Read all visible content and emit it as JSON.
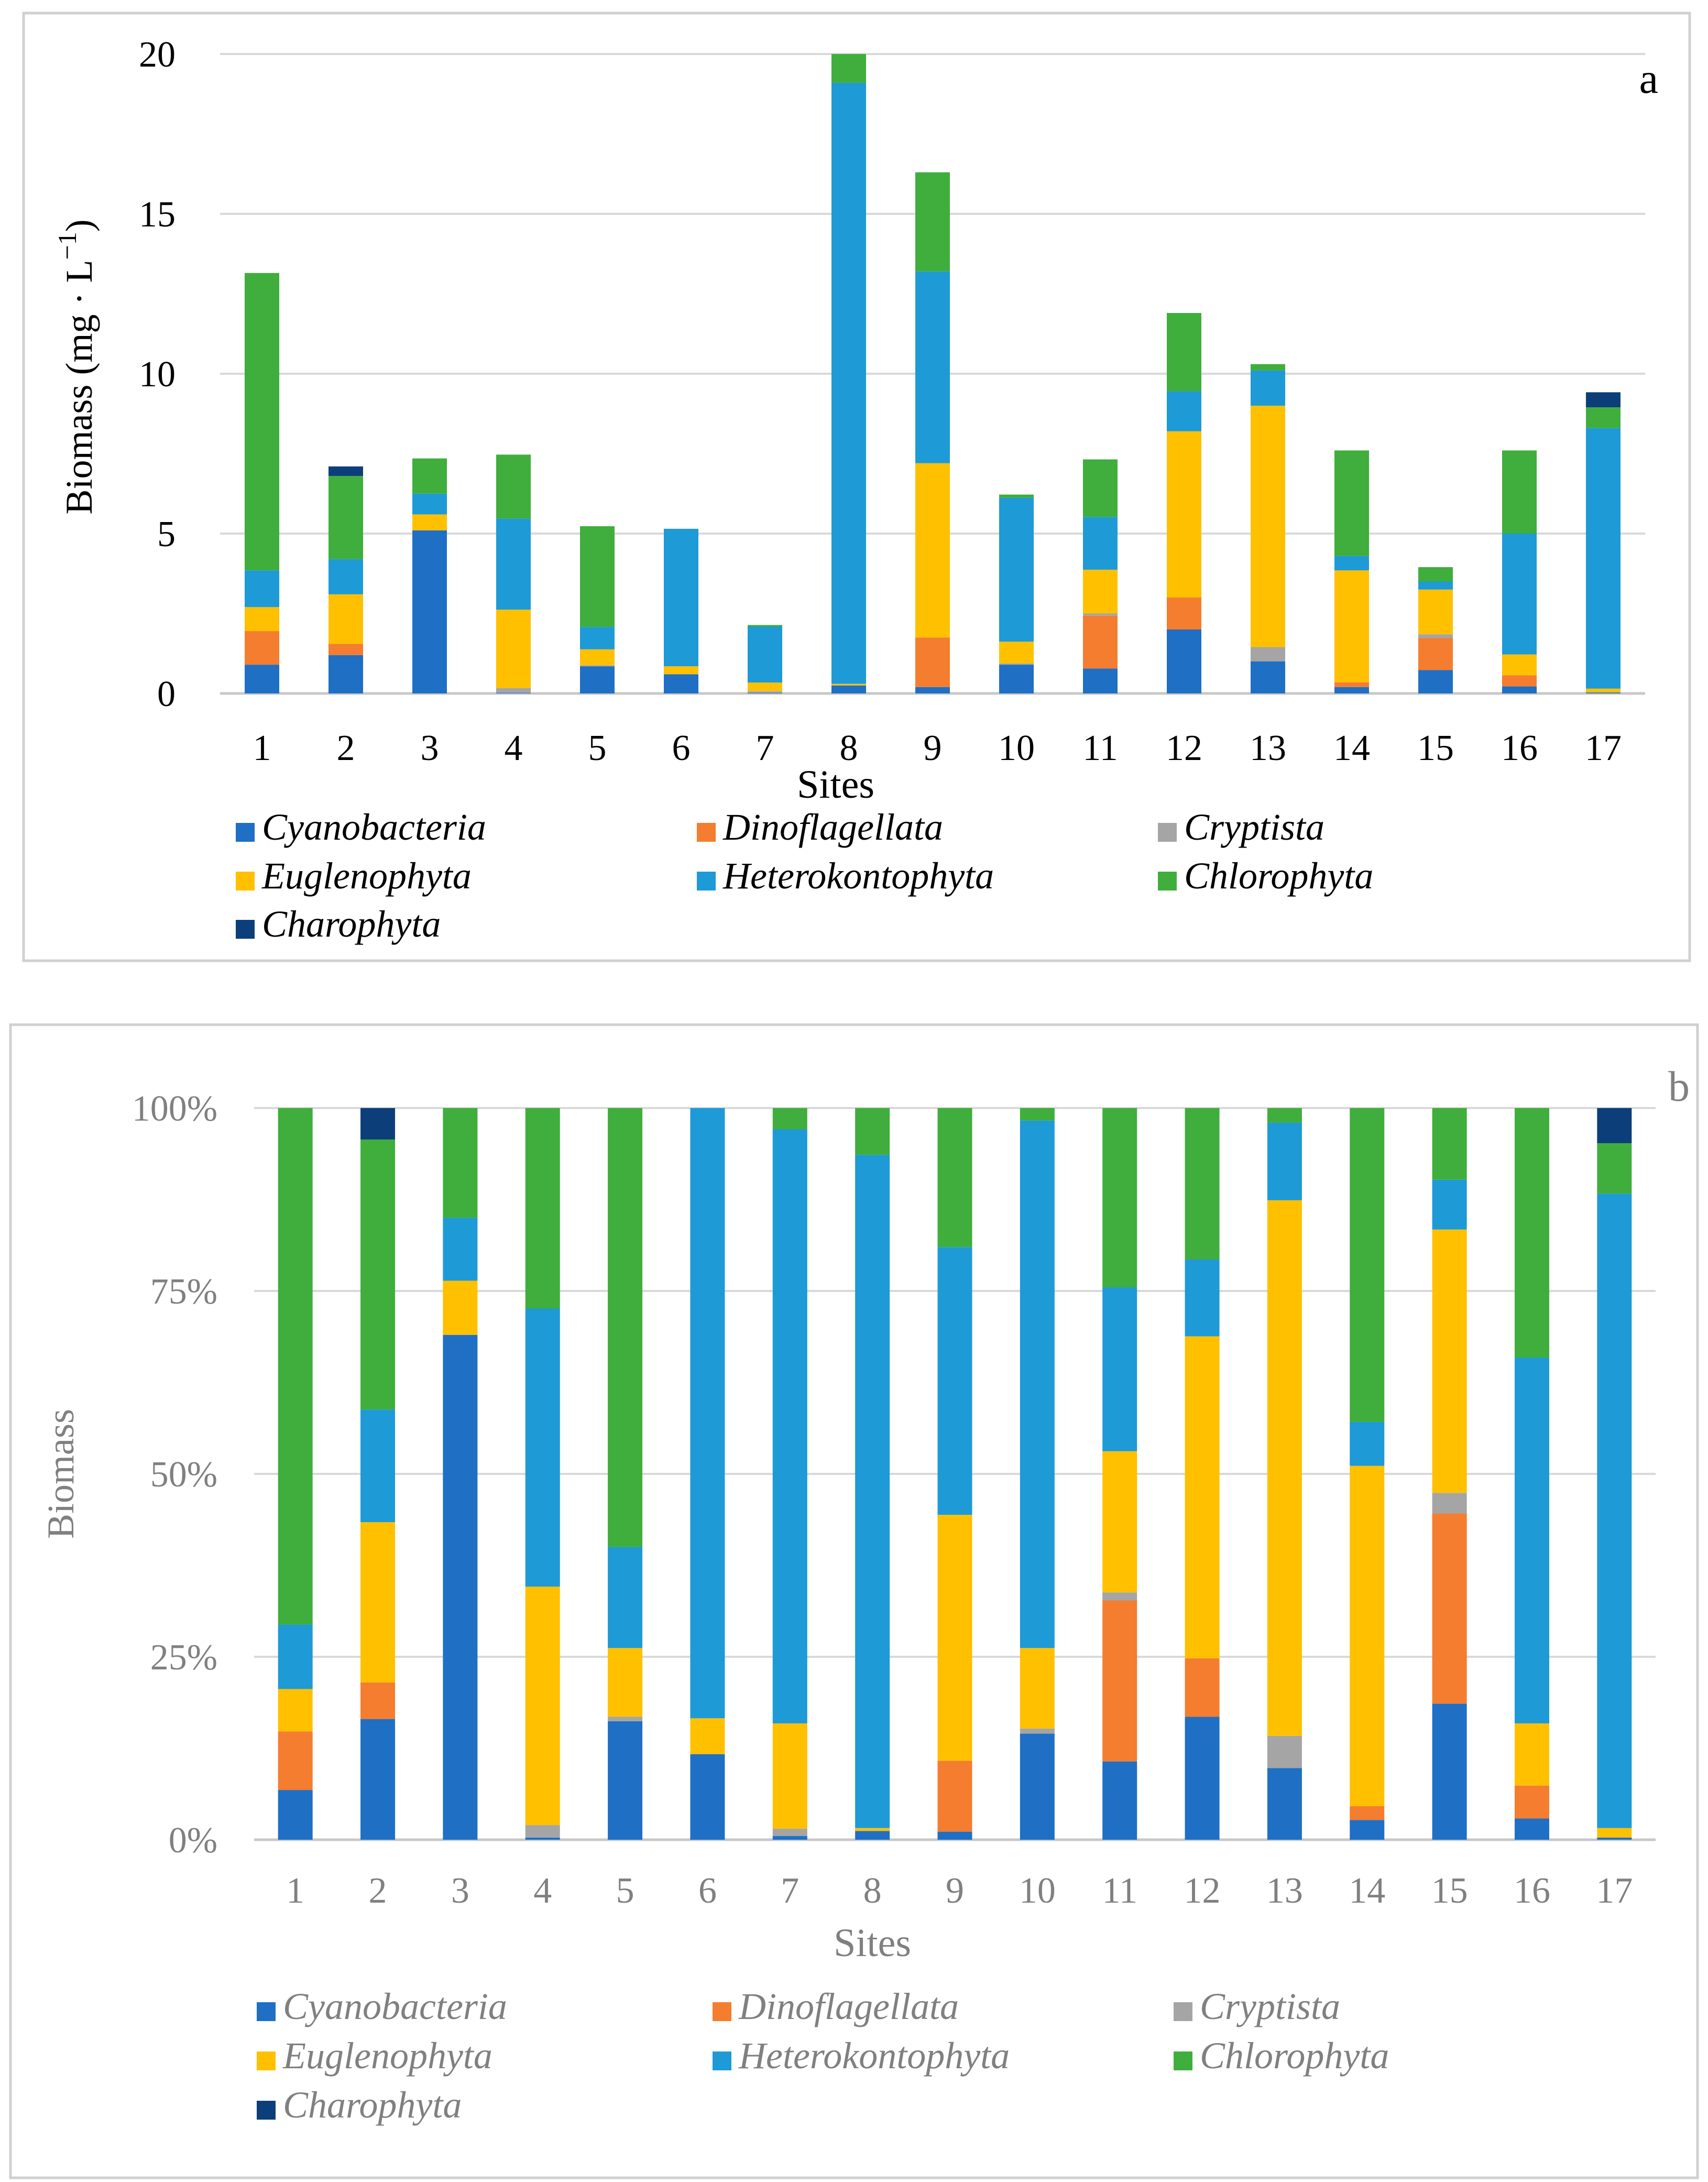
{
  "chart_data": [
    {
      "panel": "a",
      "type": "bar",
      "stacked": true,
      "xlabel": "Sites",
      "ylabel_main": "Biomass (mg · L",
      "ylabel_sup": "−1",
      "ylabel_tail": ")",
      "ylim": [
        0,
        20
      ],
      "yticks": [
        0,
        5,
        10,
        15,
        20
      ],
      "ytick_labels": [
        "0",
        "5",
        "10",
        "15",
        "20"
      ],
      "grid": true,
      "categories": [
        "1",
        "2",
        "3",
        "4",
        "5",
        "6",
        "7",
        "8",
        "9",
        "10",
        "11",
        "12",
        "13",
        "14",
        "15",
        "16",
        "17"
      ],
      "series": [
        {
          "name": "Cyanobacteria",
          "color": "#1f6fc5",
          "values": [
            0.9,
            1.2,
            5.1,
            0.02,
            0.85,
            0.6,
            0.02,
            0.25,
            0.2,
            0.9,
            0.78,
            2.0,
            1.0,
            0.2,
            0.73,
            0.22,
            0.03
          ]
        },
        {
          "name": "Dinoflagellata",
          "color": "#f47d2f",
          "values": [
            1.05,
            0.35,
            0,
            0,
            0,
            0,
            0,
            0,
            1.55,
            0,
            1.65,
            1.0,
            0,
            0.15,
            1.0,
            0.35,
            0
          ]
        },
        {
          "name": "Cryptista",
          "color": "#a5a5a5",
          "values": [
            0,
            0,
            0,
            0.15,
            0.03,
            0,
            0.05,
            0,
            0,
            0.04,
            0.07,
            0,
            0.45,
            0,
            0.12,
            0,
            0
          ]
        },
        {
          "name": "Euglenophyta",
          "color": "#ffc000",
          "values": [
            0.75,
            1.55,
            0.5,
            2.45,
            0.5,
            0.25,
            0.27,
            0.05,
            5.45,
            0.68,
            1.37,
            5.2,
            7.55,
            3.5,
            1.4,
            0.65,
            0.12
          ]
        },
        {
          "name": "Heterokontophyta",
          "color": "#1e9ad6",
          "values": [
            1.15,
            1.1,
            0.65,
            2.85,
            0.7,
            4.3,
            1.75,
            18.8,
            6.0,
            4.5,
            1.65,
            1.25,
            1.1,
            0.45,
            0.25,
            3.78,
            8.15
          ]
        },
        {
          "name": "Chlorophyta",
          "color": "#3fae3c",
          "values": [
            9.3,
            2.6,
            1.1,
            2.0,
            3.15,
            0,
            0.05,
            0.9,
            3.1,
            0.1,
            1.8,
            2.45,
            0.2,
            3.3,
            0.45,
            2.6,
            0.65
          ]
        },
        {
          "name": "Charophyta",
          "color": "#0c3f79",
          "values": [
            0,
            0.3,
            0,
            0,
            0,
            0,
            0,
            0,
            0,
            0,
            0,
            0,
            0,
            0,
            0,
            0,
            0.47
          ]
        }
      ],
      "panel_label": "a",
      "legend": [
        "Cyanobacteria",
        "Dinoflagellata",
        "Cryptista",
        "Euglenophyta",
        "Heterokontophyta",
        "Chlorophyta",
        "Charophyta"
      ]
    },
    {
      "panel": "b",
      "type": "bar",
      "stacked": true,
      "percent": true,
      "xlabel": "Sites",
      "ylabel": "Biomass",
      "ylim": [
        0,
        100
      ],
      "yticks": [
        0,
        25,
        50,
        75,
        100
      ],
      "ytick_labels": [
        "0%",
        "25%",
        "50%",
        "75%",
        "100%"
      ],
      "grid": true,
      "categories": [
        "1",
        "2",
        "3",
        "4",
        "5",
        "6",
        "7",
        "8",
        "9",
        "10",
        "11",
        "12",
        "13",
        "14",
        "15",
        "16",
        "17"
      ],
      "series": [
        {
          "name": "Cyanobacteria",
          "color": "#1f6fc5",
          "values": [
            6.8,
            16.5,
            69,
            0.3,
            16.2,
            11.7,
            0.5,
            1.2,
            1.1,
            14.5,
            10.7,
            16.8,
            9.8,
            2.7,
            18.6,
            2.9,
            0.3
          ]
        },
        {
          "name": "Dinoflagellata",
          "color": "#f47d2f",
          "values": [
            8,
            5,
            0,
            0,
            0,
            0,
            0,
            0,
            9.7,
            0,
            22,
            8,
            0,
            1.9,
            26,
            4.5,
            0
          ]
        },
        {
          "name": "Cryptista",
          "color": "#a5a5a5",
          "values": [
            0,
            0,
            0,
            1.7,
            0.6,
            0,
            1,
            0,
            0,
            0.7,
            1.1,
            0,
            4.4,
            0,
            2.8,
            0,
            0
          ]
        },
        {
          "name": "Euglenophyta",
          "color": "#ffc000",
          "values": [
            5.8,
            21.9,
            7.4,
            32.6,
            9.4,
            4.9,
            14.4,
            0.4,
            33.6,
            11,
            19.3,
            44,
            73.2,
            46.5,
            36,
            8.5,
            1.3
          ]
        },
        {
          "name": "Heterokontophyta",
          "color": "#1e9ad6",
          "values": [
            8.8,
            15.4,
            8.6,
            38,
            13.8,
            83.4,
            81.2,
            92,
            36.6,
            72.1,
            22.4,
            10.5,
            10.6,
            6,
            6.8,
            50,
            86.7
          ]
        },
        {
          "name": "Chlorophyta",
          "color": "#3fae3c",
          "values": [
            70.6,
            36.9,
            15,
            27.4,
            60,
            0,
            2.9,
            6.4,
            19,
            1.7,
            24.5,
            20.7,
            2,
            42.9,
            9.8,
            34.1,
            6.9
          ]
        },
        {
          "name": "Charophyta",
          "color": "#0c3f79",
          "values": [
            0,
            4.3,
            0,
            0,
            0,
            0,
            0,
            0,
            0,
            0,
            0,
            0,
            0,
            0,
            0,
            0,
            4.8
          ]
        }
      ],
      "panel_label": "b",
      "legend": [
        "Cyanobacteria",
        "Dinoflagellata",
        "Cryptista",
        "Euglenophyta",
        "Heterokontophyta",
        "Chlorophyta",
        "Charophyta"
      ]
    }
  ]
}
